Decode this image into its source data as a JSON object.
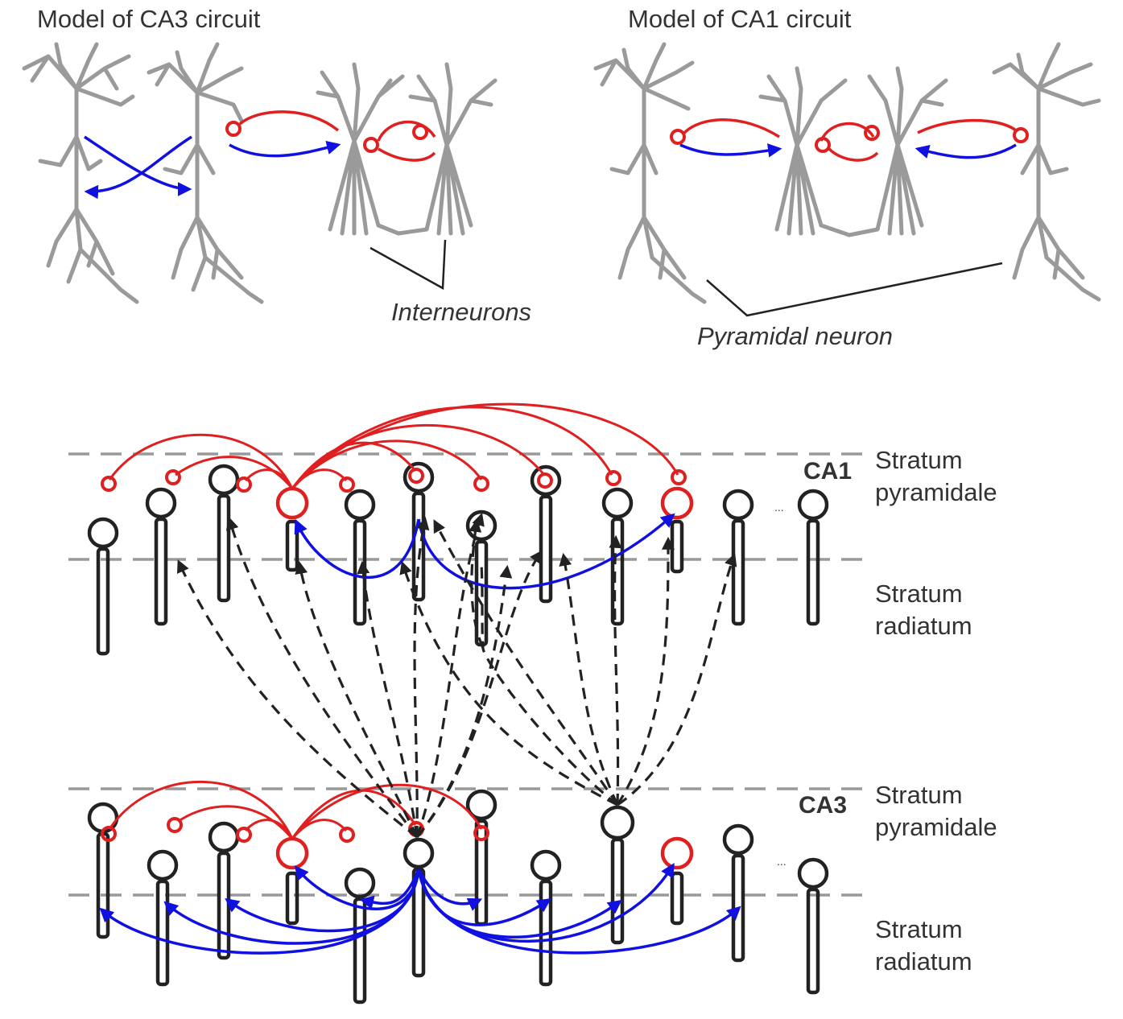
{
  "top": {
    "ca3_title": "Model of CA3 circuit",
    "ca1_title": "Model of CA1 circuit",
    "interneurons_label": "Interneurons",
    "pyramidal_label": "Pyramidal neuron"
  },
  "layers": {
    "ca1_region": "CA1",
    "ca3_region": "CA3",
    "ca1_pyr_line1": "Stratum",
    "ca1_pyr_line2": "pyramidale",
    "ca1_rad_line1": "Stratum",
    "ca1_rad_line2": "radiatum",
    "ca3_pyr_line1": "Stratum",
    "ca3_pyr_line2": "pyramidale",
    "ca3_rad_line1": "Stratum",
    "ca3_rad_line2": "radiatum",
    "ellipsis": "..."
  },
  "colors": {
    "neuron_gray": "#9a9a9a",
    "inhibitory_red": "#e02020",
    "excitatory_blue": "#1010e0",
    "schaffer_dashed": "#222222",
    "cell_outline": "#222222",
    "layer_line": "#999999"
  }
}
